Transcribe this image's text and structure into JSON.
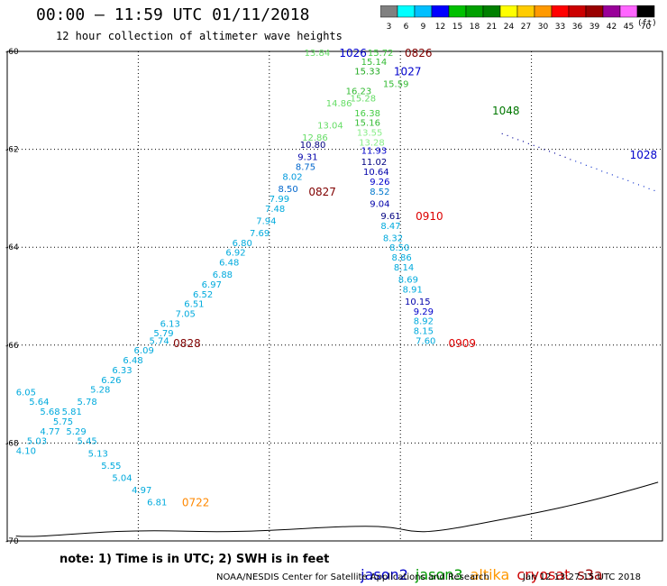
{
  "header": {
    "title": "00:00 – 11:59 UTC 01/11/2018",
    "subtitle": "12 hour collection of altimeter wave heights"
  },
  "colorbar": {
    "ticks": [
      "3",
      "6",
      "9",
      "12",
      "15",
      "18",
      "21",
      "24",
      "27",
      "30",
      "33",
      "36",
      "39",
      "42",
      "45",
      "70"
    ],
    "unit": "(ft)",
    "colors": [
      "#808080",
      "#00ffff",
      "#00bfff",
      "#0000ff",
      "#00c000",
      "#00a000",
      "#008000",
      "#ffff00",
      "#ffcc00",
      "#ff9900",
      "#ff0000",
      "#cc0000",
      "#990000",
      "#990099",
      "#ff66ff",
      "#000000"
    ]
  },
  "map": {
    "x_ticks": [
      "0",
      "3",
      "6",
      "9",
      "12",
      "15"
    ],
    "y_ticks": [
      "-60",
      "-62",
      "-64",
      "-66",
      "-68",
      "-70"
    ],
    "x_range": [
      0,
      15
    ],
    "y_range": [
      -70,
      -60
    ]
  },
  "readings": [
    {
      "t": "13.84",
      "x": 6.8,
      "y": -60.02,
      "c": "#66dd66"
    },
    {
      "t": "15.72",
      "x": 8.25,
      "y": -60.02,
      "c": "#44cc44"
    },
    {
      "t": "15.14",
      "x": 8.1,
      "y": -60.2,
      "c": "#33bb33"
    },
    {
      "t": "15.33",
      "x": 7.95,
      "y": -60.4,
      "c": "#22aa22"
    },
    {
      "t": "15.59",
      "x": 8.6,
      "y": -60.65,
      "c": "#33bb33"
    },
    {
      "t": "16.23",
      "x": 7.75,
      "y": -60.8,
      "c": "#33bb33"
    },
    {
      "t": "15.28",
      "x": 7.85,
      "y": -60.95,
      "c": "#66dd66"
    },
    {
      "t": "14.86",
      "x": 7.3,
      "y": -61.05,
      "c": "#66dd66"
    },
    {
      "t": "16.38",
      "x": 7.95,
      "y": -61.25,
      "c": "#44cc44"
    },
    {
      "t": "15.16",
      "x": 7.95,
      "y": -61.45,
      "c": "#33bb33"
    },
    {
      "t": "13.04",
      "x": 7.1,
      "y": -61.5,
      "c": "#66dd66"
    },
    {
      "t": "13.55",
      "x": 8.0,
      "y": -61.65,
      "c": "#88ee88"
    },
    {
      "t": "12.86",
      "x": 6.75,
      "y": -61.75,
      "c": "#66dd66"
    },
    {
      "t": "13.28",
      "x": 8.05,
      "y": -61.85,
      "c": "#88ee88"
    },
    {
      "t": "10.80",
      "x": 6.7,
      "y": -61.9,
      "c": "#000080"
    },
    {
      "t": "11.93",
      "x": 8.1,
      "y": -62.02,
      "c": "#0000cc"
    },
    {
      "t": "9.31",
      "x": 6.65,
      "y": -62.15,
      "c": "#0000aa"
    },
    {
      "t": "11.02",
      "x": 8.1,
      "y": -62.25,
      "c": "#000080"
    },
    {
      "t": "8.75",
      "x": 6.6,
      "y": -62.35,
      "c": "#0066cc"
    },
    {
      "t": "10.64",
      "x": 8.15,
      "y": -62.45,
      "c": "#0000aa"
    },
    {
      "t": "8.02",
      "x": 6.3,
      "y": -62.55,
      "c": "#0099dd"
    },
    {
      "t": "9.26",
      "x": 8.3,
      "y": -62.65,
      "c": "#0000cc"
    },
    {
      "t": "8.50",
      "x": 6.2,
      "y": -62.8,
      "c": "#0066cc"
    },
    {
      "t": "8.52",
      "x": 8.3,
      "y": -62.85,
      "c": "#0077cc"
    },
    {
      "t": "7.99",
      "x": 6.0,
      "y": -63.0,
      "c": "#00aadd"
    },
    {
      "t": "9.04",
      "x": 8.3,
      "y": -63.1,
      "c": "#0000aa"
    },
    {
      "t": "7.48",
      "x": 5.9,
      "y": -63.2,
      "c": "#00aadd"
    },
    {
      "t": "9.61",
      "x": 8.55,
      "y": -63.35,
      "c": "#000080"
    },
    {
      "t": "7.94",
      "x": 5.7,
      "y": -63.45,
      "c": "#00aadd"
    },
    {
      "t": "8.47",
      "x": 8.55,
      "y": -63.55,
      "c": "#00aadd"
    },
    {
      "t": "7.69",
      "x": 5.55,
      "y": -63.7,
      "c": "#00aadd"
    },
    {
      "t": "8.32",
      "x": 8.6,
      "y": -63.8,
      "c": "#00aadd"
    },
    {
      "t": "6.80",
      "x": 5.15,
      "y": -63.9,
      "c": "#00aadd"
    },
    {
      "t": "8.50",
      "x": 8.75,
      "y": -64.0,
      "c": "#00aadd"
    },
    {
      "t": "6.92",
      "x": 5.0,
      "y": -64.1,
      "c": "#00aadd"
    },
    {
      "t": "8.86",
      "x": 8.8,
      "y": -64.2,
      "c": "#00aadd"
    },
    {
      "t": "6.48",
      "x": 4.85,
      "y": -64.3,
      "c": "#00aadd"
    },
    {
      "t": "8.14",
      "x": 8.85,
      "y": -64.4,
      "c": "#00aadd"
    },
    {
      "t": "6.88",
      "x": 4.7,
      "y": -64.55,
      "c": "#00aadd"
    },
    {
      "t": "8.69",
      "x": 8.95,
      "y": -64.65,
      "c": "#00aadd"
    },
    {
      "t": "6.97",
      "x": 4.45,
      "y": -64.75,
      "c": "#00aadd"
    },
    {
      "t": "8.91",
      "x": 9.05,
      "y": -64.85,
      "c": "#00aadd"
    },
    {
      "t": "6.52",
      "x": 4.25,
      "y": -64.95,
      "c": "#00aadd"
    },
    {
      "t": "10.15",
      "x": 9.1,
      "y": -65.1,
      "c": "#0000aa"
    },
    {
      "t": "6.51",
      "x": 4.05,
      "y": -65.15,
      "c": "#00aadd"
    },
    {
      "t": "9.29",
      "x": 9.3,
      "y": -65.3,
      "c": "#0000cc"
    },
    {
      "t": "7.05",
      "x": 3.85,
      "y": -65.35,
      "c": "#00aadd"
    },
    {
      "t": "8.92",
      "x": 9.3,
      "y": -65.5,
      "c": "#00aadd"
    },
    {
      "t": "6.13",
      "x": 3.5,
      "y": -65.55,
      "c": "#00aadd"
    },
    {
      "t": "8.15",
      "x": 9.3,
      "y": -65.7,
      "c": "#00aadd"
    },
    {
      "t": "5.79",
      "x": 3.35,
      "y": -65.75,
      "c": "#00aadd"
    },
    {
      "t": "7.60",
      "x": 9.35,
      "y": -65.9,
      "c": "#00aadd"
    },
    {
      "t": "5.74",
      "x": 3.25,
      "y": -65.9,
      "c": "#00aadd"
    },
    {
      "t": "6.09",
      "x": 2.9,
      "y": -66.1,
      "c": "#00aadd"
    },
    {
      "t": "6.48",
      "x": 2.65,
      "y": -66.3,
      "c": "#00aadd"
    },
    {
      "t": "6.33",
      "x": 2.4,
      "y": -66.5,
      "c": "#00aadd"
    },
    {
      "t": "6.26",
      "x": 2.15,
      "y": -66.7,
      "c": "#00aadd"
    },
    {
      "t": "6.05",
      "x": 0.2,
      "y": -66.95,
      "c": "#00aadd"
    },
    {
      "t": "5.28",
      "x": 1.9,
      "y": -66.9,
      "c": "#00aadd"
    },
    {
      "t": "5.64",
      "x": 0.5,
      "y": -67.15,
      "c": "#00aadd"
    },
    {
      "t": "5.78",
      "x": 1.6,
      "y": -67.15,
      "c": "#00aadd"
    },
    {
      "t": "5.68",
      "x": 0.75,
      "y": -67.35,
      "c": "#00aadd"
    },
    {
      "t": "5.81",
      "x": 1.25,
      "y": -67.35,
      "c": "#00aadd"
    },
    {
      "t": "5.75",
      "x": 1.05,
      "y": -67.55,
      "c": "#00aadd"
    },
    {
      "t": "4.77",
      "x": 0.75,
      "y": -67.75,
      "c": "#00aadd"
    },
    {
      "t": "5.29",
      "x": 1.35,
      "y": -67.75,
      "c": "#00aadd"
    },
    {
      "t": "5.03",
      "x": 0.45,
      "y": -67.95,
      "c": "#00aadd"
    },
    {
      "t": "5.45",
      "x": 1.6,
      "y": -67.95,
      "c": "#00aadd"
    },
    {
      "t": "4.10",
      "x": 0.2,
      "y": -68.15,
      "c": "#00aadd"
    },
    {
      "t": "5.13",
      "x": 1.85,
      "y": -68.2,
      "c": "#00aadd"
    },
    {
      "t": "5.55",
      "x": 2.15,
      "y": -68.45,
      "c": "#00aadd"
    },
    {
      "t": "5.04",
      "x": 2.4,
      "y": -68.7,
      "c": "#00aadd"
    },
    {
      "t": "4.97",
      "x": 2.85,
      "y": -68.95,
      "c": "#00aadd"
    },
    {
      "t": "6.81",
      "x": 3.2,
      "y": -69.2,
      "c": "#00aadd"
    }
  ],
  "pass_labels": [
    {
      "t": "1026",
      "x": 7.6,
      "y": -60.02,
      "c": "#0000cc"
    },
    {
      "t": "0826",
      "x": 9.1,
      "y": -60.02,
      "c": "#800000"
    },
    {
      "t": "1027",
      "x": 8.85,
      "y": -60.4,
      "c": "#0000cc"
    },
    {
      "t": "1048",
      "x": 11.1,
      "y": -61.2,
      "c": "#007700"
    },
    {
      "t": "1028",
      "x": 14.25,
      "y": -62.1,
      "c": "#0000cc"
    },
    {
      "t": "0827",
      "x": 6.9,
      "y": -62.85,
      "c": "#800000"
    },
    {
      "t": "0910",
      "x": 9.35,
      "y": -63.35,
      "c": "#dd0000"
    },
    {
      "t": "0828",
      "x": 3.8,
      "y": -65.95,
      "c": "#800000"
    },
    {
      "t": "0909",
      "x": 10.1,
      "y": -65.95,
      "c": "#dd0000"
    },
    {
      "t": "0722",
      "x": 4.0,
      "y": -69.2,
      "c": "#ff8800"
    }
  ],
  "footer": {
    "note": "note: 1) Time is in UTC; 2) SWH is in feet",
    "satellites": [
      {
        "name": "jason2",
        "color": "#0000cc"
      },
      {
        "name": "jason3",
        "color": "#009900"
      },
      {
        "name": "altika",
        "color": "#ff9900"
      },
      {
        "name": "cryosat",
        "color": "#cc0000"
      },
      {
        "name": "s3a",
        "color": "#990000"
      }
    ],
    "credit": "NOAA/NESDIS Center for Satellite Applications and Research",
    "timestamp": "Jan 12 13:27:15 UTC 2018"
  }
}
